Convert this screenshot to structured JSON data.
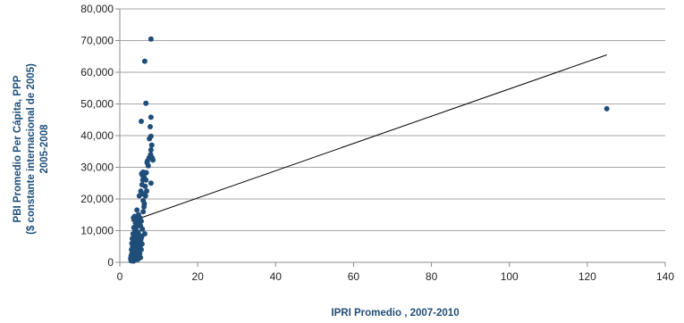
{
  "chart_data": {
    "type": "scatter",
    "title": "",
    "xlabel": "IPRI Promedio , 2007-2010",
    "ylabel_lines": [
      "PBI Promedio Per Cápita, PPP",
      "($ constante internacional  de 2005)",
      "2005-2008"
    ],
    "xlim": [
      0,
      140
    ],
    "ylim": [
      0,
      80000
    ],
    "x_ticks": [
      0,
      20,
      40,
      60,
      80,
      100,
      120,
      140
    ],
    "y_ticks": [
      0,
      10000,
      20000,
      30000,
      40000,
      50000,
      60000,
      70000,
      80000
    ],
    "x_tick_labels": [
      "0",
      "20",
      "40",
      "60",
      "80",
      "100",
      "120",
      "140"
    ],
    "y_tick_labels": [
      "0",
      "10,000",
      "20,000",
      "30,000",
      "40,000",
      "50,000",
      "60,000",
      "70,000",
      "80,000"
    ],
    "grid": "horizontal",
    "legend": "none",
    "marker_color": "#1f4e79",
    "trendline": {
      "x": [
        3,
        125
      ],
      "y": [
        13000,
        65500
      ],
      "color": "#000000"
    },
    "points": [
      [
        8.0,
        70500
      ],
      [
        6.4,
        63500
      ],
      [
        6.7,
        50200
      ],
      [
        5.5,
        44500
      ],
      [
        125.0,
        48500
      ],
      [
        8.0,
        45800
      ],
      [
        7.8,
        42800
      ],
      [
        7.6,
        39000
      ],
      [
        8.0,
        39800
      ],
      [
        8.2,
        37000
      ],
      [
        8.0,
        35500
      ],
      [
        7.9,
        34000
      ],
      [
        8.3,
        33000
      ],
      [
        7.5,
        33000
      ],
      [
        7.0,
        31500
      ],
      [
        8.5,
        32300
      ],
      [
        7.3,
        30500
      ],
      [
        6.0,
        28500
      ],
      [
        5.6,
        28000
      ],
      [
        6.8,
        28300
      ],
      [
        6.2,
        27000
      ],
      [
        5.9,
        26000
      ],
      [
        5.7,
        24500
      ],
      [
        6.5,
        24000
      ],
      [
        8.0,
        25000
      ],
      [
        5.4,
        22500
      ],
      [
        6.1,
        21500
      ],
      [
        6.6,
        21000
      ],
      [
        5.0,
        21000
      ],
      [
        6.3,
        18500
      ],
      [
        6.2,
        17500
      ],
      [
        6.0,
        16000
      ],
      [
        4.4,
        16500
      ],
      [
        3.8,
        14500
      ],
      [
        3.5,
        14000
      ],
      [
        4.8,
        15000
      ],
      [
        5.2,
        14000
      ],
      [
        4.6,
        13500
      ],
      [
        5.5,
        13000
      ],
      [
        4.0,
        12500
      ],
      [
        4.9,
        12000
      ],
      [
        3.6,
        11000
      ],
      [
        5.3,
        11500
      ],
      [
        4.2,
        11000
      ],
      [
        5.8,
        10500
      ],
      [
        3.9,
        10000
      ],
      [
        4.7,
        9500
      ],
      [
        6.4,
        9000
      ],
      [
        3.4,
        9000
      ],
      [
        4.3,
        9000
      ],
      [
        5.1,
        8500
      ],
      [
        3.7,
        8000
      ],
      [
        4.5,
        8000
      ],
      [
        5.6,
        8000
      ],
      [
        3.2,
        7500
      ],
      [
        4.1,
        7500
      ],
      [
        3.9,
        7000
      ],
      [
        4.8,
        7000
      ],
      [
        5.4,
        7200
      ],
      [
        3.5,
        6500
      ],
      [
        4.4,
        6500
      ],
      [
        3.1,
        6000
      ],
      [
        4.0,
        6000
      ],
      [
        5.0,
        6200
      ],
      [
        3.6,
        5500
      ],
      [
        4.6,
        5500
      ],
      [
        5.7,
        5800
      ],
      [
        3.3,
        5000
      ],
      [
        4.2,
        5000
      ],
      [
        5.2,
        5000
      ],
      [
        3.8,
        4500
      ],
      [
        4.9,
        4500
      ],
      [
        3.0,
        4000
      ],
      [
        4.1,
        4000
      ],
      [
        5.5,
        4000
      ],
      [
        3.4,
        3500
      ],
      [
        4.5,
        3500
      ],
      [
        3.7,
        3000
      ],
      [
        4.7,
        3000
      ],
      [
        3.1,
        2800
      ],
      [
        4.0,
        2700
      ],
      [
        5.1,
        2700
      ],
      [
        3.5,
        2500
      ],
      [
        4.3,
        2200
      ],
      [
        2.9,
        2000
      ],
      [
        3.9,
        2000
      ],
      [
        4.8,
        2000
      ],
      [
        3.2,
        1800
      ],
      [
        3.6,
        1500
      ],
      [
        4.4,
        1500
      ],
      [
        5.3,
        1500
      ],
      [
        2.8,
        1200
      ],
      [
        3.3,
        1000
      ],
      [
        4.1,
        1000
      ],
      [
        3.0,
        800
      ],
      [
        3.8,
        700
      ],
      [
        4.6,
        900
      ],
      [
        2.9,
        500
      ],
      [
        3.5,
        400
      ],
      [
        3.2,
        1300
      ],
      [
        6.0,
        19500
      ],
      [
        6.9,
        22500
      ],
      [
        7.1,
        32000
      ],
      [
        5.8,
        27500
      ],
      [
        6.7,
        26000
      ]
    ]
  }
}
